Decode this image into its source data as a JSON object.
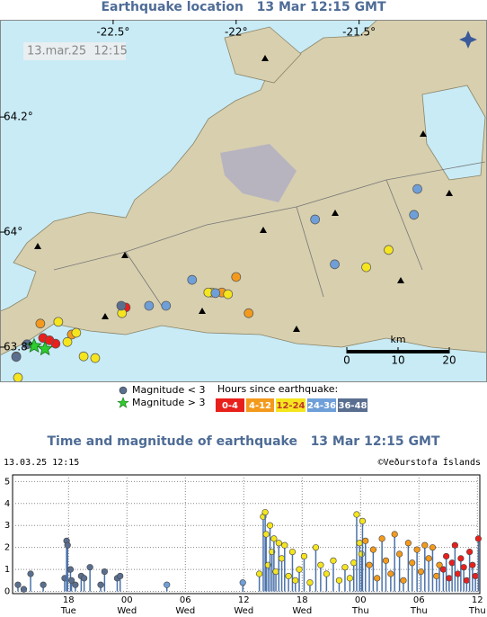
{
  "map": {
    "title": "Earthquake location   13 Mar 12:15 GMT",
    "timestamp": "13.mar.25  12:15",
    "lonlim": [
      -22.96,
      -20.98
    ],
    "latlim": [
      63.739,
      64.369
    ],
    "lonticks": [
      {
        "value": -22.5,
        "label": "-22.5°"
      },
      {
        "value": -22,
        "label": "-22°"
      },
      {
        "value": -21.5,
        "label": "-21.5°"
      }
    ],
    "latticks": [
      {
        "value": 64.2,
        "label": "64.2°"
      },
      {
        "value": 64,
        "label": "64°"
      },
      {
        "value": 63.8,
        "label": "63.8°"
      }
    ],
    "legend_small": "Magnitude < 3",
    "legend_large": "Magnitude > 3",
    "legend_hours": "Hours since earthquake:",
    "large_quakes": {
      "lon": [
        -22.821,
        -22.777
      ],
      "lat": [
        63.802,
        63.797
      ]
    },
    "scale": {
      "label": "km",
      "ticks": [
        0,
        10,
        20
      ]
    }
  },
  "chart_data": {
    "type": "scatter",
    "title": "Time and magnitude of earthquake   13 Mar 12:15 GMT",
    "timestamp": "13.03.25 12:15",
    "credit": "©Veðurstofa Íslands",
    "xlim": [
      12.25,
      60.25
    ],
    "xticks": [
      {
        "value": 18,
        "label": "18"
      },
      {
        "value": 24,
        "label": "00"
      },
      {
        "value": 30,
        "label": "06"
      },
      {
        "value": 36,
        "label": "12"
      },
      {
        "value": 42,
        "label": "18"
      },
      {
        "value": 48,
        "label": "00"
      },
      {
        "value": 54,
        "label": "06"
      },
      {
        "value": 60,
        "label": "12"
      }
    ],
    "xtick_days": [
      "Tue",
      "Wed",
      "Wed",
      "Wed",
      "Wed",
      "Thu",
      "Thu",
      "Thu"
    ],
    "ylim": [
      -0.1,
      5.3
    ],
    "yticks": [
      0,
      1,
      2,
      3,
      4,
      5
    ],
    "grid": true,
    "stem_color": "#4a72aa",
    "series": [
      {
        "name": "0-4",
        "color": "#e8201c",
        "x": [
          56.5,
          56.8,
          57.1,
          57.4,
          57.7,
          58.0,
          58.3,
          58.6,
          58.9,
          59.2,
          59.5,
          59.8,
          60.1
        ],
        "values": [
          1.0,
          1.6,
          0.6,
          1.3,
          2.1,
          0.8,
          1.5,
          1.1,
          0.5,
          1.8,
          1.2,
          0.7,
          2.4
        ],
        "map_lon": [
          -22.449,
          -22.785,
          -22.734,
          -22.759
        ],
        "map_lat": [
          63.869,
          63.816,
          63.806,
          63.812
        ]
      },
      {
        "name": "4-12",
        "color": "#f39a1c",
        "x": [
          48.5,
          48.9,
          49.3,
          49.7,
          50.2,
          50.6,
          51.1,
          51.5,
          52.0,
          52.4,
          52.9,
          53.3,
          53.8,
          54.2,
          54.6,
          55.0,
          55.4,
          55.8,
          56.1
        ],
        "values": [
          2.3,
          1.2,
          1.9,
          0.6,
          2.4,
          1.4,
          0.8,
          2.6,
          1.7,
          0.5,
          2.2,
          1.3,
          1.9,
          0.9,
          2.1,
          1.5,
          2.0,
          0.7,
          1.2
        ],
        "map_lon": [
          -22.0,
          -21.949,
          -22.058,
          -22.894,
          -22.796,
          -22.668
        ],
        "map_lat": [
          63.922,
          63.859,
          63.895,
          63.784,
          63.841,
          63.822
        ]
      },
      {
        "name": "12-24",
        "color": "#f5e51e",
        "x": [
          37.6,
          38.0,
          38.2,
          38.3,
          38.5,
          38.7,
          38.9,
          39.1,
          39.3,
          39.6,
          39.9,
          40.2,
          40.6,
          41.0,
          41.3,
          41.7,
          42.2,
          42.8,
          43.4,
          43.9,
          44.5,
          45.2,
          45.8,
          46.4,
          46.9,
          47.3,
          47.6,
          47.9,
          48.1,
          48.2
        ],
        "values": [
          0.8,
          3.4,
          3.6,
          2.6,
          1.2,
          3.0,
          1.8,
          2.4,
          0.9,
          2.2,
          1.5,
          2.1,
          0.7,
          1.8,
          0.5,
          1.0,
          1.6,
          0.4,
          2.0,
          1.2,
          0.8,
          1.4,
          0.5,
          1.1,
          0.6,
          1.3,
          3.5,
          2.2,
          1.7,
          3.2
        ],
        "map_lon": [
          -21.38,
          -21.471,
          -22.033,
          -22.099,
          -22.113,
          -22.65,
          -22.686,
          -22.573,
          -22.62,
          -22.887,
          -22.464,
          -22.723
        ],
        "map_lat": [
          63.969,
          63.939,
          63.892,
          63.895,
          63.895,
          63.825,
          63.809,
          63.781,
          63.784,
          63.747,
          63.859,
          63.844
        ]
      },
      {
        "name": "24-36",
        "color": "#6f9fd8",
        "x": [
          28.1,
          35.9
        ],
        "values": [
          0.3,
          0.4
        ],
        "map_lon": [
          -22.179,
          -22.084,
          -22.285,
          -22.354,
          -21.679,
          -21.599,
          -21.277,
          -21.263
        ],
        "map_lat": [
          63.917,
          63.894,
          63.872,
          63.872,
          64.022,
          63.944,
          64.03,
          64.075
        ]
      },
      {
        "name": "36-48",
        "color": "#5a6f90",
        "x": [
          12.8,
          13.4,
          14.1,
          15.4,
          17.6,
          17.8,
          17.9,
          18.2,
          18.3,
          18.7,
          19.3,
          19.6,
          20.2,
          21.3,
          21.7,
          23.0,
          23.3
        ],
        "values": [
          0.3,
          0.1,
          0.8,
          0.3,
          0.6,
          2.3,
          2.1,
          1.0,
          0.5,
          0.3,
          0.7,
          0.6,
          1.1,
          0.3,
          0.9,
          0.6,
          0.7
        ],
        "map_lon": [
          -22.467,
          -22.894,
          -22.85
        ],
        "map_lat": [
          63.872,
          63.783,
          63.805
        ]
      }
    ]
  }
}
